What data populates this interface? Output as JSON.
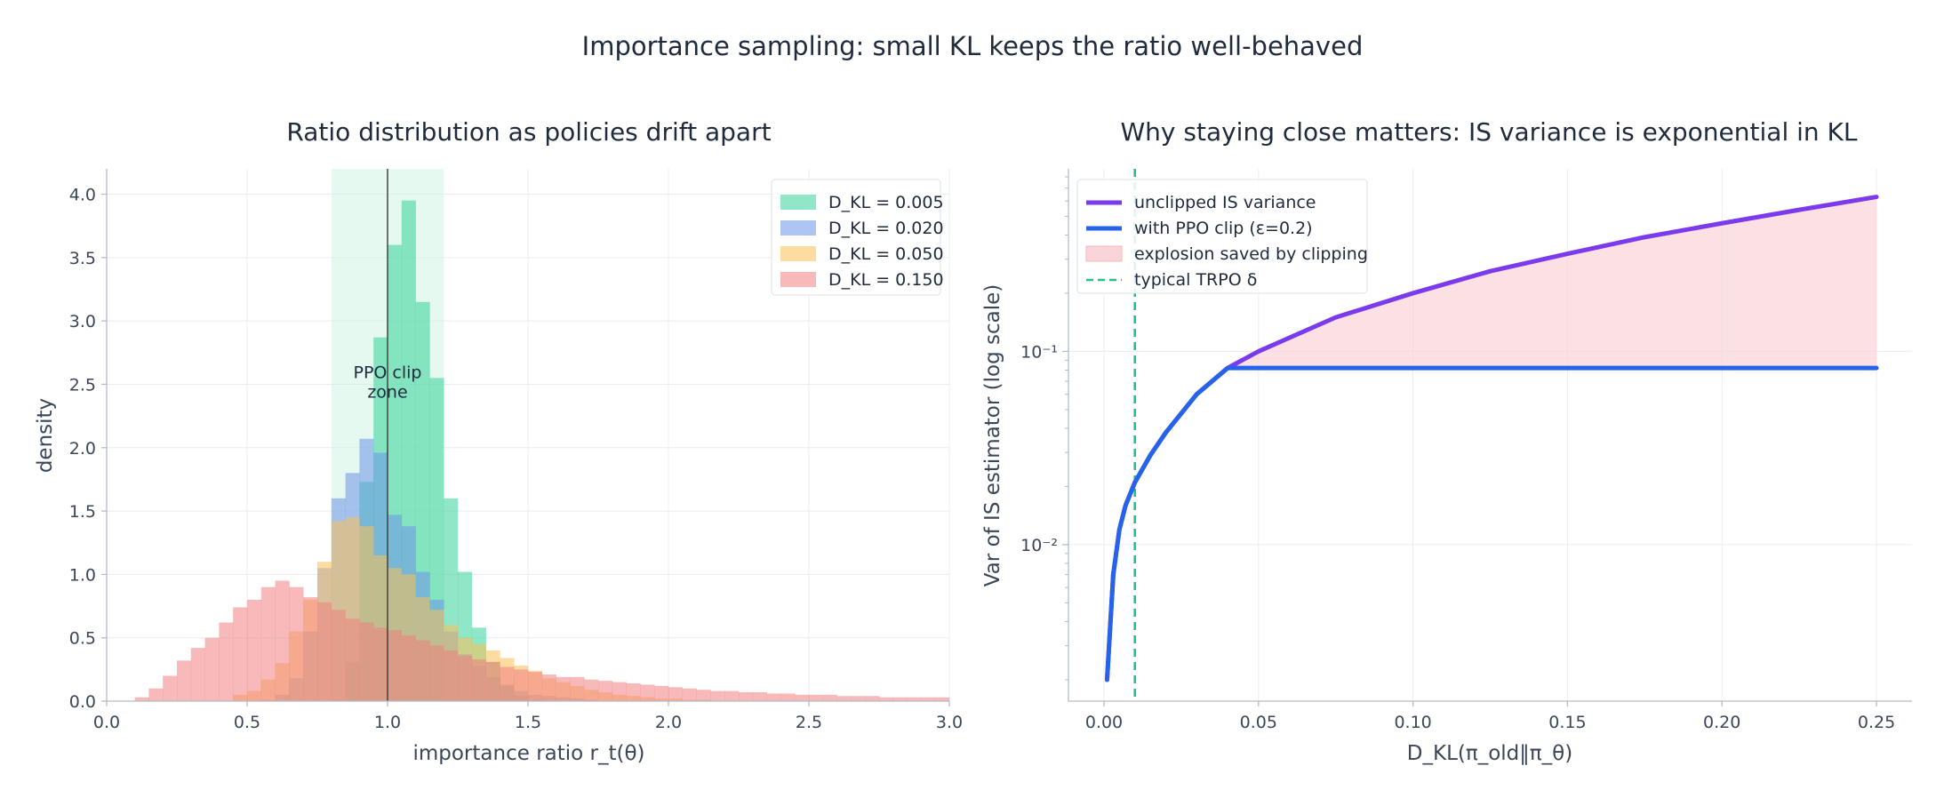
{
  "suptitle": "Importance sampling: small KL keeps the ratio well-behaved",
  "chart_data": [
    {
      "type": "histogram",
      "title": "Ratio distribution as policies drift apart",
      "xlabel": "importance ratio r_t(θ)",
      "ylabel": "density",
      "xlim": [
        0.0,
        3.0
      ],
      "ylim": [
        0.0,
        4.2
      ],
      "xticks": [
        "0.0",
        "0.5",
        "1.0",
        "1.5",
        "2.0",
        "2.5",
        "3.0"
      ],
      "yticks": [
        "0.0",
        "0.5",
        "1.0",
        "1.5",
        "2.0",
        "2.5",
        "3.0",
        "3.5",
        "4.0"
      ],
      "bin_width": 0.05,
      "bin_start": 0.0,
      "clip_zone": {
        "range": [
          0.8,
          1.2
        ],
        "label": "PPO clip zone"
      },
      "reference_line_x": 1.0,
      "legend_position": "upper right",
      "grid": true,
      "series": [
        {
          "name": "D_KL = 0.005",
          "color": "#34d399",
          "values": [
            0,
            0,
            0,
            0,
            0,
            0,
            0,
            0,
            0,
            0,
            0,
            0,
            0,
            0,
            0,
            0,
            0.01,
            0.31,
            1.73,
            2.87,
            3.6,
            3.95,
            3.15,
            2.55,
            1.6,
            1.02,
            0.58,
            0.31,
            0.12,
            0.04,
            0.01
          ]
        },
        {
          "name": "D_KL = 0.020",
          "color": "#6b93e8",
          "values": [
            0,
            0,
            0,
            0,
            0,
            0,
            0,
            0,
            0,
            0,
            0,
            0.01,
            0.05,
            0.18,
            0.55,
            1.05,
            1.6,
            1.8,
            2.07,
            1.96,
            1.47,
            1.38,
            1.02,
            0.8,
            0.55,
            0.37,
            0.28,
            0.19,
            0.13,
            0.08,
            0.05,
            0.04,
            0.03,
            0.02,
            0.01
          ]
        },
        {
          "name": "D_KL = 0.050",
          "color": "#fbbf55",
          "values": [
            0,
            0,
            0,
            0,
            0,
            0,
            0,
            0,
            0,
            0.05,
            0.08,
            0.17,
            0.3,
            0.55,
            0.8,
            1.1,
            1.42,
            1.45,
            1.38,
            1.15,
            1.05,
            1.0,
            0.82,
            0.72,
            0.6,
            0.5,
            0.45,
            0.4,
            0.34,
            0.28,
            0.24,
            0.18,
            0.15,
            0.12,
            0.09,
            0.07,
            0.05,
            0.04,
            0.03,
            0.02,
            0.02,
            0.01,
            0.01
          ]
        },
        {
          "name": "D_KL = 0.150",
          "color": "#f07f7f",
          "values": [
            0,
            0,
            0.03,
            0.1,
            0.2,
            0.32,
            0.42,
            0.5,
            0.62,
            0.74,
            0.8,
            0.9,
            0.95,
            0.9,
            0.82,
            0.78,
            0.72,
            0.65,
            0.62,
            0.58,
            0.56,
            0.52,
            0.48,
            0.44,
            0.4,
            0.36,
            0.33,
            0.31,
            0.27,
            0.25,
            0.23,
            0.21,
            0.19,
            0.19,
            0.17,
            0.16,
            0.15,
            0.14,
            0.13,
            0.12,
            0.11,
            0.1,
            0.09,
            0.08,
            0.08,
            0.07,
            0.07,
            0.06,
            0.06,
            0.05,
            0.05,
            0.05,
            0.04,
            0.04,
            0.04,
            0.03,
            0.03,
            0.03,
            0.03,
            0.03
          ]
        }
      ]
    },
    {
      "type": "line",
      "title": "Why staying close matters: IS variance is exponential in KL",
      "xlabel": "D_KL(π_old‖π_θ)",
      "ylabel": "Var of IS estimator (log scale)",
      "yscale": "log",
      "xlim": [
        -0.0115,
        0.2615
      ],
      "ylim": [
        0.00155,
        0.88
      ],
      "xticks": [
        "0.00",
        "0.05",
        "0.10",
        "0.15",
        "0.20",
        "0.25"
      ],
      "yticks": [
        "10⁻²",
        "10⁻¹"
      ],
      "legend_position": "upper left",
      "grid": true,
      "series": [
        {
          "name": "unclipped IS variance",
          "color": "#7c3aed",
          "x": [
            0.001,
            0.003,
            0.005,
            0.007,
            0.01,
            0.015,
            0.02,
            0.03,
            0.04,
            0.05,
            0.075,
            0.1,
            0.125,
            0.15,
            0.175,
            0.2,
            0.225,
            0.25
          ],
          "y": [
            0.002,
            0.007,
            0.012,
            0.016,
            0.021,
            0.029,
            0.038,
            0.06,
            0.082,
            0.1,
            0.15,
            0.2,
            0.26,
            0.32,
            0.39,
            0.46,
            0.54,
            0.63
          ]
        },
        {
          "name": "with PPO clip (ε=0.2)",
          "color": "#2563eb",
          "x": [
            0.001,
            0.003,
            0.005,
            0.007,
            0.01,
            0.015,
            0.02,
            0.03,
            0.04,
            0.05,
            0.1,
            0.15,
            0.2,
            0.25
          ],
          "y": [
            0.002,
            0.007,
            0.012,
            0.016,
            0.021,
            0.029,
            0.038,
            0.06,
            0.082,
            0.082,
            0.082,
            0.082,
            0.082,
            0.082
          ]
        }
      ],
      "fill_between": {
        "name": "explosion saved by clipping",
        "color": "#f9d4d8"
      },
      "vline": {
        "name": "typical TRPO δ",
        "x": 0.01,
        "color": "#22c08a"
      }
    }
  ]
}
